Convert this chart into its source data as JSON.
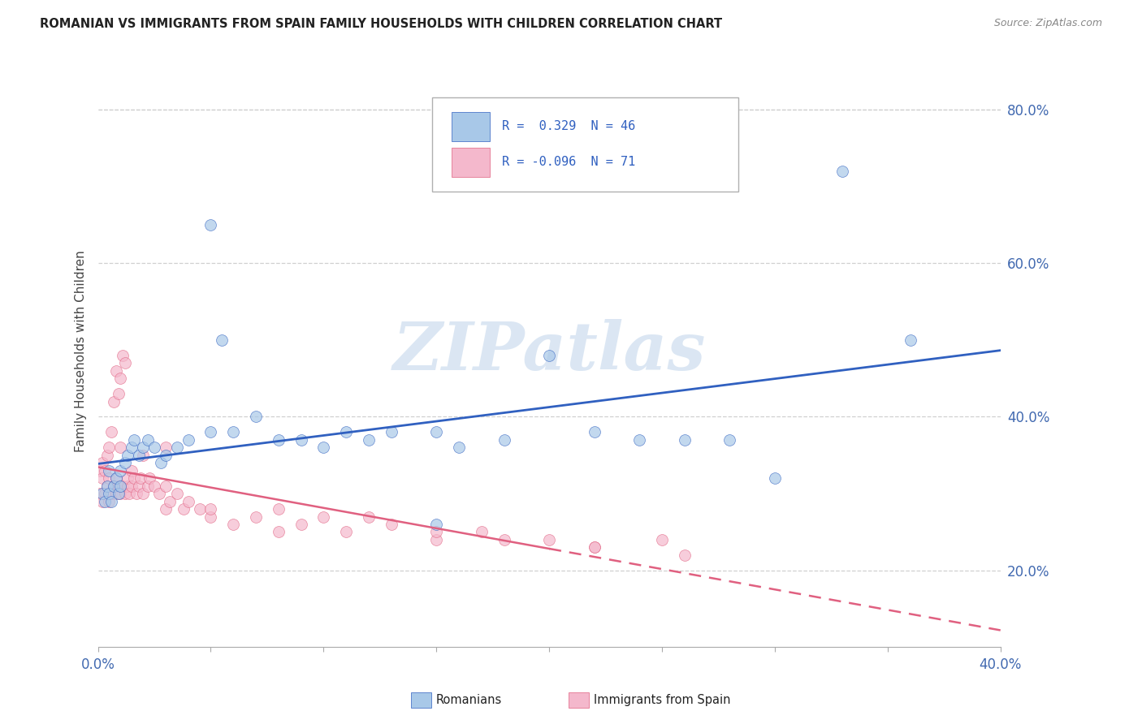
{
  "title": "ROMANIAN VS IMMIGRANTS FROM SPAIN FAMILY HOUSEHOLDS WITH CHILDREN CORRELATION CHART",
  "source": "Source: ZipAtlas.com",
  "ylabel": "Family Households with Children",
  "xlim": [
    0.0,
    40.0
  ],
  "ylim": [
    10.0,
    87.0
  ],
  "yticks": [
    20.0,
    40.0,
    60.0,
    80.0
  ],
  "ytick_labels": [
    "20.0%",
    "40.0%",
    "60.0%",
    "80.0%"
  ],
  "watermark": "ZIPatlas",
  "blue_color": "#a8c8e8",
  "pink_color": "#f4b8cc",
  "blue_line_color": "#3060c0",
  "pink_line_color": "#e06080",
  "background_color": "#ffffff",
  "grid_color": "#d0d0d0",
  "blue_x": [
    0.2,
    0.3,
    0.4,
    0.5,
    0.5,
    0.6,
    0.7,
    0.8,
    0.9,
    1.0,
    1.0,
    1.2,
    1.3,
    1.5,
    1.6,
    1.8,
    2.0,
    2.2,
    2.5,
    2.8,
    3.0,
    3.5,
    4.0,
    5.0,
    5.5,
    6.0,
    7.0,
    8.0,
    9.0,
    10.0,
    11.0,
    12.0,
    13.0,
    15.0,
    16.0,
    18.0,
    20.0,
    22.0,
    24.0,
    26.0,
    28.0,
    30.0,
    33.0,
    5.0,
    36.0,
    15.0
  ],
  "blue_y": [
    30.0,
    29.0,
    31.0,
    30.0,
    33.0,
    29.0,
    31.0,
    32.0,
    30.0,
    31.0,
    33.0,
    34.0,
    35.0,
    36.0,
    37.0,
    35.0,
    36.0,
    37.0,
    36.0,
    34.0,
    35.0,
    36.0,
    37.0,
    38.0,
    50.0,
    38.0,
    40.0,
    37.0,
    37.0,
    36.0,
    38.0,
    37.0,
    38.0,
    38.0,
    36.0,
    37.0,
    48.0,
    38.0,
    37.0,
    37.0,
    37.0,
    32.0,
    72.0,
    65.0,
    50.0,
    26.0
  ],
  "pink_x": [
    0.1,
    0.1,
    0.2,
    0.2,
    0.2,
    0.3,
    0.3,
    0.4,
    0.4,
    0.5,
    0.5,
    0.5,
    0.6,
    0.6,
    0.7,
    0.7,
    0.8,
    0.8,
    0.8,
    0.9,
    0.9,
    1.0,
    1.0,
    1.0,
    1.1,
    1.1,
    1.2,
    1.2,
    1.3,
    1.3,
    1.4,
    1.5,
    1.5,
    1.6,
    1.7,
    1.8,
    1.9,
    2.0,
    2.0,
    2.2,
    2.3,
    2.5,
    2.7,
    3.0,
    3.0,
    3.2,
    3.5,
    3.8,
    4.0,
    4.5,
    5.0,
    6.0,
    7.0,
    8.0,
    9.0,
    10.0,
    11.0,
    13.0,
    15.0,
    17.0,
    20.0,
    22.0,
    25.0,
    3.0,
    5.0,
    8.0,
    12.0,
    15.0,
    18.0,
    22.0,
    26.0
  ],
  "pink_y": [
    30.0,
    33.0,
    29.0,
    32.0,
    34.0,
    30.0,
    33.0,
    31.0,
    35.0,
    29.0,
    32.0,
    36.0,
    30.0,
    38.0,
    31.0,
    42.0,
    30.0,
    32.0,
    46.0,
    31.0,
    43.0,
    30.0,
    36.0,
    45.0,
    31.0,
    48.0,
    30.0,
    47.0,
    31.0,
    32.0,
    30.0,
    31.0,
    33.0,
    32.0,
    30.0,
    31.0,
    32.0,
    30.0,
    35.0,
    31.0,
    32.0,
    31.0,
    30.0,
    31.0,
    28.0,
    29.0,
    30.0,
    28.0,
    29.0,
    28.0,
    27.0,
    26.0,
    27.0,
    25.0,
    26.0,
    27.0,
    25.0,
    26.0,
    24.0,
    25.0,
    24.0,
    23.0,
    24.0,
    36.0,
    28.0,
    28.0,
    27.0,
    25.0,
    24.0,
    23.0,
    22.0
  ],
  "blue_line_x0": 0.0,
  "blue_line_y0": 29.5,
  "blue_line_x1": 40.0,
  "blue_line_y1": 50.0,
  "pink_line_x0": 0.0,
  "pink_line_y0": 31.0,
  "pink_line_x1": 40.0,
  "pink_line_y1": 27.0,
  "pink_dash_start_x": 20.0
}
